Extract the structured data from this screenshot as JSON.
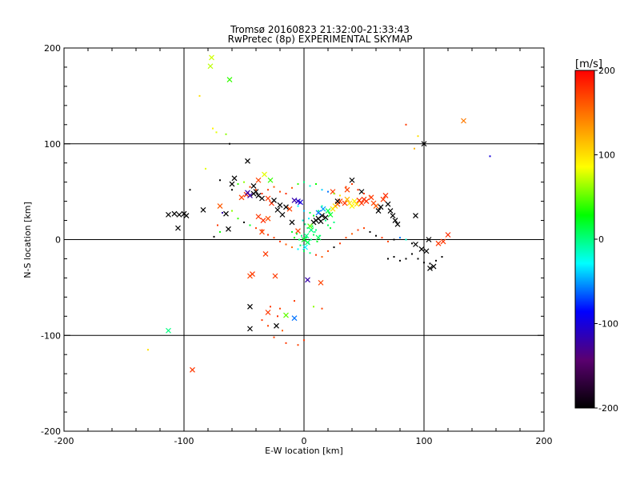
{
  "chart_data": {
    "type": "scatter",
    "title": "Tromsø 20160823 21:32:00-21:33:43",
    "subtitle": "RwPretec (8p) EXPERIMENTAL SKYMAP",
    "xlabel": "E-W location [km]",
    "ylabel": "N-S location [km]",
    "xlim": [
      -200,
      200
    ],
    "ylim": [
      -200,
      200
    ],
    "xticks": [
      "-200",
      "-100",
      "0",
      "100",
      "200"
    ],
    "yticks": [
      "-200",
      "-100",
      "0",
      "100",
      "200"
    ],
    "grid": true,
    "grid_lines": [
      -100,
      0,
      100
    ],
    "colorbar": {
      "label": "[m/s]",
      "range": [
        -200,
        200
      ],
      "ticks": [
        "-200",
        "-100",
        "0",
        "100",
        "200"
      ],
      "colormap": [
        "#000000",
        "#5a0070",
        "#0000ff",
        "#00ffff",
        "#00ff00",
        "#ffff00",
        "#ff8000",
        "#ff0000"
      ]
    },
    "series": [
      {
        "marker": "cross",
        "points": [
          [
            -77,
            190,
            75
          ],
          [
            -78,
            181,
            70
          ],
          [
            -62,
            167,
            40
          ],
          [
            133,
            124,
            145
          ],
          [
            -113,
            26,
            -200
          ],
          [
            -108,
            27,
            -200
          ],
          [
            -104,
            26,
            -200
          ],
          [
            -100,
            27,
            -200
          ],
          [
            -98,
            25,
            -200
          ],
          [
            -105,
            12,
            -200
          ],
          [
            -84,
            31,
            -200
          ],
          [
            -70,
            35,
            160
          ],
          [
            -65,
            27,
            -200
          ],
          [
            -63,
            11,
            -200
          ],
          [
            -60,
            58,
            -200
          ],
          [
            -58,
            64,
            -200
          ],
          [
            -52,
            44,
            170
          ],
          [
            -48,
            47,
            180
          ],
          [
            -47,
            49,
            -120
          ],
          [
            -45,
            46,
            -120
          ],
          [
            -42,
            48,
            -200
          ],
          [
            -40,
            50,
            -200
          ],
          [
            -38,
            46,
            -200
          ],
          [
            -35,
            43,
            -200
          ],
          [
            -47,
            82,
            -200
          ],
          [
            -42,
            56,
            -200
          ],
          [
            -38,
            62,
            170
          ],
          [
            -33,
            68,
            80
          ],
          [
            -28,
            62,
            40
          ],
          [
            -30,
            43,
            175
          ],
          [
            -27,
            38,
            180
          ],
          [
            -25,
            41,
            -200
          ],
          [
            -20,
            36,
            -200
          ],
          [
            -15,
            34,
            -200
          ],
          [
            -38,
            24,
            175
          ],
          [
            -34,
            20,
            180
          ],
          [
            -30,
            22,
            165
          ],
          [
            -35,
            8,
            170
          ],
          [
            -32,
            -15,
            175
          ],
          [
            -22,
            31,
            -200
          ],
          [
            -18,
            26,
            -200
          ],
          [
            -12,
            32,
            170
          ],
          [
            -8,
            41,
            -120
          ],
          [
            -5,
            40,
            -110
          ],
          [
            -3,
            39,
            -100
          ],
          [
            -10,
            18,
            -200
          ],
          [
            -5,
            9,
            170
          ],
          [
            2,
            4,
            0
          ],
          [
            6,
            10,
            0
          ],
          [
            8,
            18,
            -200
          ],
          [
            10,
            20,
            -200
          ],
          [
            12,
            22,
            -200
          ],
          [
            15,
            25,
            -200
          ],
          [
            14,
            19,
            -200
          ],
          [
            18,
            23,
            -200
          ],
          [
            20,
            30,
            10
          ],
          [
            22,
            26,
            20
          ],
          [
            24,
            32,
            100
          ],
          [
            26,
            35,
            100
          ],
          [
            16,
            32,
            -50
          ],
          [
            12,
            28,
            -60
          ],
          [
            28,
            37,
            160
          ],
          [
            30,
            40,
            170
          ],
          [
            34,
            38,
            180
          ],
          [
            36,
            42,
            120
          ],
          [
            38,
            38,
            100
          ],
          [
            40,
            35,
            90
          ],
          [
            42,
            40,
            90
          ],
          [
            44,
            37,
            100
          ],
          [
            46,
            41,
            180
          ],
          [
            48,
            38,
            175
          ],
          [
            50,
            42,
            180
          ],
          [
            52,
            40,
            180
          ],
          [
            56,
            44,
            175
          ],
          [
            58,
            38,
            170
          ],
          [
            60,
            35,
            160
          ],
          [
            62,
            30,
            -200
          ],
          [
            64,
            34,
            -200
          ],
          [
            66,
            42,
            175
          ],
          [
            68,
            46,
            180
          ],
          [
            70,
            37,
            -200
          ],
          [
            72,
            30,
            -200
          ],
          [
            74,
            25,
            -200
          ],
          [
            76,
            20,
            -200
          ],
          [
            78,
            16,
            -200
          ],
          [
            40,
            62,
            -200
          ],
          [
            36,
            52,
            170
          ],
          [
            28,
            40,
            -200
          ],
          [
            24,
            50,
            175
          ],
          [
            48,
            50,
            -200
          ],
          [
            5,
            14,
            50
          ],
          [
            0,
            0,
            20
          ],
          [
            3,
            -3,
            10
          ],
          [
            1,
            -8,
            -30
          ],
          [
            12,
            2,
            10
          ],
          [
            -43,
            -36,
            175
          ],
          [
            -45,
            -38,
            170
          ],
          [
            -24,
            -38,
            175
          ],
          [
            -45,
            -70,
            -200
          ],
          [
            -45,
            -93,
            -200
          ],
          [
            -23,
            -90,
            -200
          ],
          [
            -30,
            -76,
            175
          ],
          [
            -15,
            -79,
            50
          ],
          [
            -8,
            -82,
            -60
          ],
          [
            3,
            -42,
            -120
          ],
          [
            14,
            -45,
            170
          ],
          [
            93,
            25,
            -200
          ],
          [
            100,
            100,
            -200
          ],
          [
            112,
            -4,
            175
          ],
          [
            116,
            -2,
            175
          ],
          [
            120,
            5,
            180
          ],
          [
            105,
            -30,
            -200
          ],
          [
            108,
            -28,
            -200
          ],
          [
            93,
            -5,
            -200
          ],
          [
            98,
            -10,
            -200
          ],
          [
            102,
            -12,
            -200
          ],
          [
            104,
            0,
            -200
          ],
          [
            -93,
            -136,
            175
          ],
          [
            -113,
            -95,
            0
          ]
        ]
      },
      {
        "marker": "dot",
        "points": [
          [
            -87,
            150,
            100
          ],
          [
            -76,
            116,
            90
          ],
          [
            -73,
            112,
            80
          ],
          [
            -65,
            110,
            60
          ],
          [
            -62,
            100,
            -200
          ],
          [
            -82,
            74,
            80
          ],
          [
            -70,
            62,
            -200
          ],
          [
            -60,
            52,
            -200
          ],
          [
            -55,
            58,
            40
          ],
          [
            -50,
            60,
            60
          ],
          [
            -45,
            55,
            170
          ],
          [
            -40,
            52,
            175
          ],
          [
            -35,
            48,
            180
          ],
          [
            -30,
            52,
            175
          ],
          [
            -25,
            55,
            160
          ],
          [
            -20,
            50,
            170
          ],
          [
            -15,
            48,
            180
          ],
          [
            -10,
            54,
            160
          ],
          [
            -5,
            58,
            40
          ],
          [
            0,
            60,
            0
          ],
          [
            5,
            56,
            -20
          ],
          [
            10,
            58,
            30
          ],
          [
            15,
            52,
            -40
          ],
          [
            20,
            50,
            -60
          ],
          [
            25,
            48,
            60
          ],
          [
            30,
            46,
            100
          ],
          [
            35,
            55,
            170
          ],
          [
            40,
            58,
            175
          ],
          [
            45,
            52,
            180
          ],
          [
            50,
            48,
            175
          ],
          [
            55,
            45,
            170
          ],
          [
            -60,
            30,
            60
          ],
          [
            -55,
            22,
            40
          ],
          [
            -50,
            18,
            -200
          ],
          [
            -45,
            15,
            20
          ],
          [
            -40,
            12,
            170
          ],
          [
            -35,
            10,
            175
          ],
          [
            -30,
            5,
            180
          ],
          [
            -25,
            2,
            170
          ],
          [
            -20,
            -2,
            175
          ],
          [
            -15,
            -5,
            160
          ],
          [
            -10,
            -8,
            150
          ],
          [
            -5,
            -10,
            -30
          ],
          [
            0,
            -12,
            10
          ],
          [
            5,
            -14,
            0
          ],
          [
            10,
            -16,
            175
          ],
          [
            15,
            -18,
            160
          ],
          [
            20,
            -12,
            170
          ],
          [
            25,
            -8,
            -200
          ],
          [
            30,
            -4,
            175
          ],
          [
            35,
            2,
            170
          ],
          [
            40,
            6,
            160
          ],
          [
            45,
            10,
            175
          ],
          [
            50,
            12,
            170
          ],
          [
            55,
            8,
            -200
          ],
          [
            60,
            4,
            -200
          ],
          [
            65,
            2,
            175
          ],
          [
            70,
            -2,
            170
          ],
          [
            75,
            0,
            -200
          ],
          [
            80,
            2,
            -60
          ],
          [
            85,
            0,
            -20
          ],
          [
            90,
            -4,
            -200
          ],
          [
            -5,
            35,
            -30
          ],
          [
            0,
            30,
            -40
          ],
          [
            5,
            28,
            10
          ],
          [
            8,
            25,
            20
          ],
          [
            12,
            30,
            0
          ],
          [
            15,
            35,
            -10
          ],
          [
            18,
            20,
            0
          ],
          [
            20,
            15,
            10
          ],
          [
            22,
            12,
            20
          ],
          [
            25,
            18,
            0
          ],
          [
            10,
            10,
            0
          ],
          [
            8,
            5,
            10
          ],
          [
            6,
            0,
            0
          ],
          [
            4,
            -4,
            0
          ],
          [
            2,
            2,
            10
          ],
          [
            -2,
            4,
            0
          ],
          [
            -4,
            0,
            10
          ],
          [
            -6,
            6,
            20
          ],
          [
            -8,
            2,
            30
          ],
          [
            -10,
            8,
            20
          ],
          [
            3,
            12,
            0
          ],
          [
            7,
            14,
            10
          ],
          [
            9,
            8,
            0
          ],
          [
            11,
            -2,
            20
          ],
          [
            13,
            4,
            0
          ],
          [
            -3,
            -6,
            10
          ],
          [
            1,
            16,
            0
          ],
          [
            -1,
            20,
            -20
          ],
          [
            4,
            22,
            -30
          ],
          [
            -70,
            8,
            30
          ],
          [
            -28,
            -70,
            175
          ],
          [
            -20,
            -72,
            170
          ],
          [
            -22,
            -80,
            180
          ],
          [
            -18,
            -95,
            160
          ],
          [
            -25,
            -102,
            170
          ],
          [
            -15,
            -108,
            175
          ],
          [
            -5,
            -110,
            170
          ],
          [
            0,
            -105,
            175
          ],
          [
            8,
            -70,
            60
          ],
          [
            15,
            -72,
            170
          ],
          [
            -35,
            -84,
            175
          ],
          [
            -30,
            -90,
            170
          ],
          [
            -8,
            -64,
            175
          ],
          [
            70,
            -20,
            -200
          ],
          [
            75,
            -18,
            -200
          ],
          [
            80,
            -22,
            -200
          ],
          [
            85,
            -20,
            -200
          ],
          [
            90,
            -15,
            -200
          ],
          [
            95,
            -20,
            -200
          ],
          [
            100,
            -24,
            -200
          ],
          [
            105,
            -25,
            -200
          ],
          [
            110,
            -22,
            -200
          ],
          [
            115,
            -18,
            -200
          ],
          [
            95,
            108,
            100
          ],
          [
            92,
            95,
            120
          ],
          [
            85,
            120,
            175
          ],
          [
            155,
            87,
            -100
          ],
          [
            -130,
            -115,
            100
          ],
          [
            -95,
            52,
            -200
          ],
          [
            -68,
            28,
            -120
          ],
          [
            -72,
            15,
            175
          ],
          [
            -75,
            3,
            -200
          ]
        ]
      }
    ]
  }
}
